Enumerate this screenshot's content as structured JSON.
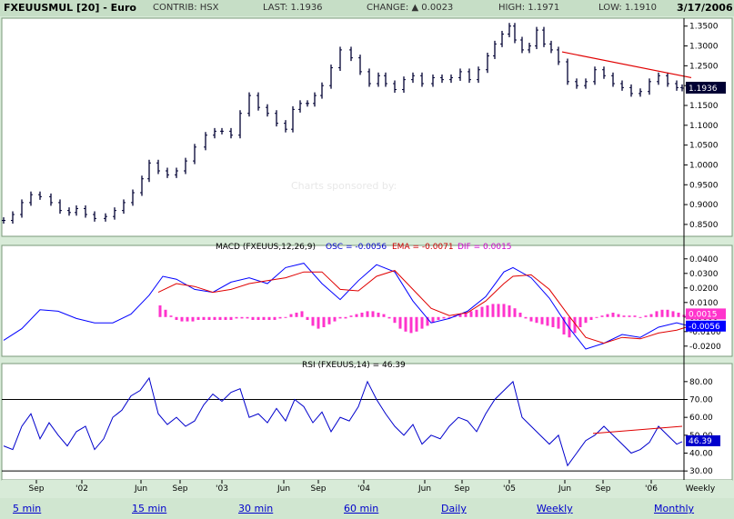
{
  "header": {
    "symbol": "FXEUUSMUL [20] - Euro",
    "contrib": "CONTRIB: HSX",
    "last": "LAST: 1.1936",
    "change": "CHANGE: ▲ 0.0023",
    "high": "HIGH: 1.1971",
    "low": "LOW: 1.1910",
    "date": "3/17/2006"
  },
  "watermark": "Charts sponsored by:",
  "footer": {
    "links": [
      "5 min",
      "15 min",
      "30 min",
      "60 min",
      "Daily",
      "Weekly",
      "Monthly"
    ],
    "selected": "Weekly"
  },
  "colors": {
    "price": "#000033",
    "trend": "#e00000",
    "macd": "#0000ff",
    "ema": "#e00000",
    "hist": "#ff33cc",
    "rsi": "#0000cc"
  },
  "chart_data": [
    {
      "type": "bar",
      "title": "FXEUUSMUL [20] - Euro",
      "subtype": "ohlc",
      "x_ticks": [
        "Sep",
        "'02",
        "Jun",
        "Sep",
        "'03",
        "Jun",
        "Sep",
        "'04",
        "Jun",
        "Sep",
        "'05",
        "Jun",
        "Sep",
        "'06",
        "Weekly"
      ],
      "y_ticks": [
        "1.3500",
        "1.3000",
        "1.2500",
        "1.2000",
        "1.1500",
        "1.1000",
        "1.0500",
        "1.0000",
        "0.9500",
        "0.9000",
        "0.8500"
      ],
      "ylim": [
        0.82,
        1.37
      ],
      "x": [
        0,
        10,
        20,
        30,
        40,
        52,
        62,
        72,
        80,
        90,
        100,
        112,
        122,
        132,
        142,
        152,
        160,
        170,
        180,
        190,
        200,
        210,
        222,
        232,
        240,
        250,
        260,
        270,
        280,
        290,
        300,
        310,
        318,
        326,
        334,
        342,
        350,
        360,
        370,
        382,
        392,
        402,
        412,
        420,
        430,
        440,
        450,
        460,
        472,
        482,
        492,
        502,
        512,
        522,
        532,
        540,
        548,
        556,
        562,
        570,
        578,
        586,
        594,
        602,
        610,
        620,
        630,
        640,
        650,
        660,
        670,
        680,
        690,
        700,
        710,
        720,
        730,
        740,
        746
      ],
      "close": [
        0.86,
        0.875,
        0.905,
        0.925,
        0.92,
        0.905,
        0.885,
        0.88,
        0.89,
        0.875,
        0.865,
        0.87,
        0.885,
        0.905,
        0.93,
        0.965,
        1.005,
        0.985,
        0.975,
        0.985,
        1.01,
        1.045,
        1.075,
        1.085,
        1.085,
        1.075,
        1.13,
        1.175,
        1.145,
        1.13,
        1.105,
        1.09,
        1.14,
        1.155,
        1.155,
        1.175,
        1.2,
        1.245,
        1.29,
        1.27,
        1.235,
        1.205,
        1.225,
        1.205,
        1.19,
        1.215,
        1.225,
        1.205,
        1.22,
        1.215,
        1.22,
        1.235,
        1.215,
        1.24,
        1.275,
        1.305,
        1.33,
        1.35,
        1.315,
        1.29,
        1.3,
        1.34,
        1.305,
        1.29,
        1.26,
        1.21,
        1.2,
        1.21,
        1.24,
        1.225,
        1.205,
        1.195,
        1.18,
        1.185,
        1.21,
        1.225,
        1.205,
        1.195,
        1.1936
      ],
      "trendline": [
        [
          618,
          1.285
        ],
        [
          760,
          1.22
        ]
      ],
      "last_label": "1.1936"
    },
    {
      "type": "line",
      "title": "MACD (FXEUUS,12,26,9)",
      "legend": [
        "OSC = -0.0056",
        "EMA = -0.0071",
        "DIF = 0.0015"
      ],
      "y_ticks": [
        "0.0400",
        "0.0300",
        "0.0200",
        "0.0100",
        "0.0000",
        "-0.0100",
        "-0.0200"
      ],
      "ylim": [
        -0.027,
        0.043
      ],
      "series": [
        {
          "name": "OSC",
          "x": [
            0,
            20,
            40,
            60,
            80,
            100,
            120,
            140,
            160,
            175,
            190,
            210,
            230,
            250,
            270,
            290,
            310,
            330,
            350,
            370,
            390,
            410,
            430,
            450,
            470,
            490,
            510,
            530,
            550,
            560,
            580,
            600,
            620,
            640,
            660,
            680,
            700,
            720,
            740,
            750
          ],
          "values": [
            -0.016,
            -0.008,
            0.005,
            0.004,
            -0.001,
            -0.004,
            -0.004,
            0.002,
            0.015,
            0.028,
            0.026,
            0.019,
            0.017,
            0.024,
            0.027,
            0.023,
            0.034,
            0.037,
            0.023,
            0.012,
            0.025,
            0.036,
            0.031,
            0.011,
            -0.004,
            -0.001,
            0.004,
            0.014,
            0.031,
            0.034,
            0.027,
            0.013,
            -0.006,
            -0.022,
            -0.018,
            -0.012,
            -0.014,
            -0.007,
            -0.004,
            -0.0056
          ]
        },
        {
          "name": "EMA",
          "x": [
            170,
            190,
            210,
            230,
            250,
            270,
            290,
            310,
            330,
            350,
            370,
            390,
            410,
            430,
            450,
            470,
            490,
            510,
            530,
            550,
            560,
            580,
            600,
            620,
            640,
            660,
            680,
            700,
            720,
            740,
            750
          ],
          "values": [
            0.017,
            0.023,
            0.021,
            0.017,
            0.019,
            0.023,
            0.025,
            0.027,
            0.031,
            0.031,
            0.019,
            0.018,
            0.028,
            0.032,
            0.019,
            0.006,
            0.001,
            0.003,
            0.011,
            0.023,
            0.028,
            0.029,
            0.019,
            0.002,
            -0.014,
            -0.018,
            -0.014,
            -0.015,
            -0.011,
            -0.009,
            -0.0071
          ]
        },
        {
          "name": "DIF",
          "type": "bar",
          "x": [
            172,
            178,
            184,
            190,
            196,
            202,
            208,
            214,
            220,
            226,
            232,
            238,
            244,
            250,
            256,
            262,
            268,
            274,
            280,
            286,
            292,
            298,
            304,
            310,
            316,
            322,
            328,
            334,
            340,
            346,
            352,
            358,
            364,
            370,
            376,
            382,
            388,
            394,
            400,
            406,
            412,
            418,
            424,
            430,
            436,
            442,
            448,
            454,
            460,
            466,
            472,
            478,
            484,
            490,
            496,
            502,
            508,
            514,
            520,
            526,
            532,
            538,
            544,
            550,
            556,
            562,
            568,
            574,
            580,
            586,
            592,
            598,
            604,
            610,
            616,
            622,
            628,
            634,
            640,
            646,
            652,
            658,
            664,
            670,
            676,
            682,
            688,
            694,
            700,
            706,
            712,
            718,
            724,
            730,
            736,
            742,
            748
          ],
          "values": [
            0.008,
            0.005,
            0.001,
            -0.002,
            -0.003,
            -0.003,
            -0.003,
            -0.002,
            -0.002,
            -0.002,
            -0.002,
            -0.002,
            -0.002,
            -0.002,
            -0.001,
            -0.001,
            -0.001,
            -0.002,
            -0.002,
            -0.002,
            -0.002,
            -0.002,
            -0.001,
            0.0,
            0.002,
            0.003,
            0.004,
            -0.002,
            -0.006,
            -0.008,
            -0.007,
            -0.005,
            -0.003,
            -0.001,
            -0.001,
            0.001,
            0.002,
            0.003,
            0.004,
            0.004,
            0.003,
            0.002,
            -0.001,
            -0.004,
            -0.008,
            -0.01,
            -0.011,
            -0.01,
            -0.008,
            -0.006,
            -0.004,
            -0.002,
            -0.001,
            0.0,
            0.001,
            0.002,
            0.003,
            0.004,
            0.005,
            0.007,
            0.008,
            0.009,
            0.009,
            0.009,
            0.008,
            0.006,
            0.003,
            -0.001,
            -0.003,
            -0.004,
            -0.005,
            -0.006,
            -0.007,
            -0.008,
            -0.012,
            -0.014,
            -0.011,
            -0.007,
            -0.004,
            -0.002,
            0.0,
            0.001,
            0.002,
            0.003,
            0.002,
            0.001,
            0.001,
            0.001,
            0.0,
            0.001,
            0.002,
            0.004,
            0.005,
            0.005,
            0.004,
            0.003,
            0.0015
          ]
        }
      ],
      "last_labels": [
        "0.0015",
        "-0.0056"
      ]
    },
    {
      "type": "line",
      "title": "RSI (FXEUUS,14) = 46.39",
      "y_ticks": [
        "80.00",
        "70.00",
        "60.00",
        "50.00",
        "40.00",
        "30.00"
      ],
      "ylim": [
        25,
        85
      ],
      "reference_lines": [
        70,
        30
      ],
      "series": [
        {
          "name": "RSI",
          "x": [
            0,
            10,
            20,
            30,
            40,
            50,
            60,
            70,
            80,
            90,
            100,
            110,
            120,
            130,
            140,
            150,
            160,
            170,
            180,
            190,
            200,
            210,
            220,
            230,
            240,
            250,
            260,
            270,
            280,
            290,
            300,
            310,
            320,
            330,
            340,
            350,
            360,
            370,
            380,
            390,
            400,
            410,
            420,
            430,
            440,
            450,
            460,
            470,
            480,
            490,
            500,
            510,
            520,
            530,
            540,
            550,
            560,
            570,
            580,
            590,
            600,
            610,
            620,
            630,
            640,
            650,
            660,
            670,
            680,
            690,
            700,
            710,
            720,
            730,
            740,
            746
          ],
          "values": [
            44,
            42,
            55,
            62,
            48,
            57,
            50,
            44,
            52,
            55,
            42,
            48,
            60,
            64,
            72,
            75,
            82,
            62,
            56,
            60,
            55,
            58,
            67,
            73,
            69,
            74,
            76,
            60,
            62,
            57,
            65,
            58,
            70,
            66,
            57,
            63,
            52,
            60,
            58,
            66,
            80,
            70,
            62,
            55,
            50,
            56,
            45,
            50,
            48,
            55,
            60,
            58,
            52,
            62,
            70,
            75,
            80,
            60,
            55,
            50,
            45,
            50,
            33,
            40,
            47,
            50,
            55,
            50,
            45,
            40,
            42,
            46,
            55,
            50,
            45,
            46.39
          ]
        },
        {
          "name": "Trendline",
          "x": [
            648,
            746
          ],
          "values": [
            51,
            55
          ]
        }
      ],
      "last_label": "46.39"
    }
  ]
}
